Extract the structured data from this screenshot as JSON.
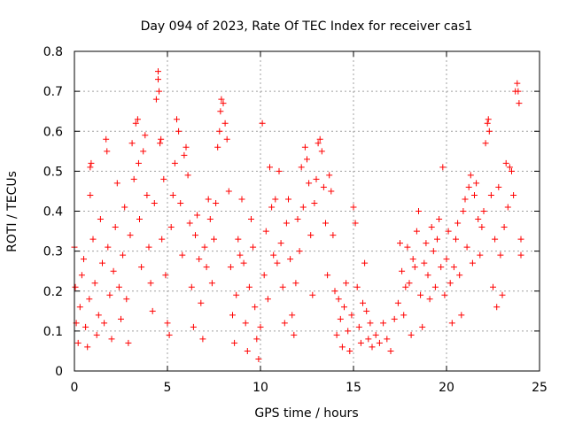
{
  "chart_data": {
    "type": "scatter",
    "title": "Day 094 of 2023, Rate Of TEC Index for receiver cas1",
    "xlabel": "GPS time / hours",
    "ylabel": "ROTI / TECUs",
    "xlim": [
      0,
      25
    ],
    "ylim": [
      0,
      0.8
    ],
    "xticks": [
      0,
      5,
      10,
      15,
      20,
      25
    ],
    "xtick_labels": [
      "0",
      "5",
      "10",
      "15",
      "20",
      "25"
    ],
    "yticks": [
      0,
      0.1,
      0.2,
      0.3,
      0.4,
      0.5,
      0.6,
      0.7,
      0.8
    ],
    "ytick_labels": [
      "0",
      "0.1",
      "0.2",
      "0.3",
      "0.4",
      "0.5",
      "0.6",
      "0.7",
      "0.8"
    ],
    "grid": true,
    "marker": "plus",
    "series": [
      {
        "color": "#ff0000",
        "points": [
          [
            0.0,
            0.31
          ],
          [
            0.05,
            0.21
          ],
          [
            0.1,
            0.12
          ],
          [
            0.2,
            0.07
          ],
          [
            0.3,
            0.16
          ],
          [
            0.4,
            0.24
          ],
          [
            0.5,
            0.28
          ],
          [
            0.6,
            0.11
          ],
          [
            0.7,
            0.06
          ],
          [
            0.8,
            0.18
          ],
          [
            0.85,
            0.44
          ],
          [
            0.85,
            0.51
          ],
          [
            0.9,
            0.52
          ],
          [
            1.0,
            0.33
          ],
          [
            1.1,
            0.22
          ],
          [
            1.2,
            0.09
          ],
          [
            1.3,
            0.14
          ],
          [
            1.4,
            0.38
          ],
          [
            1.5,
            0.27
          ],
          [
            1.6,
            0.12
          ],
          [
            1.7,
            0.58
          ],
          [
            1.75,
            0.55
          ],
          [
            1.8,
            0.31
          ],
          [
            1.9,
            0.19
          ],
          [
            2.0,
            0.08
          ],
          [
            2.1,
            0.25
          ],
          [
            2.2,
            0.36
          ],
          [
            2.3,
            0.47
          ],
          [
            2.4,
            0.21
          ],
          [
            2.5,
            0.13
          ],
          [
            2.6,
            0.29
          ],
          [
            2.7,
            0.41
          ],
          [
            2.8,
            0.18
          ],
          [
            2.9,
            0.07
          ],
          [
            3.0,
            0.34
          ],
          [
            3.1,
            0.57
          ],
          [
            3.2,
            0.48
          ],
          [
            3.3,
            0.62
          ],
          [
            3.4,
            0.63
          ],
          [
            3.45,
            0.52
          ],
          [
            3.5,
            0.38
          ],
          [
            3.6,
            0.26
          ],
          [
            3.7,
            0.55
          ],
          [
            3.8,
            0.59
          ],
          [
            3.9,
            0.44
          ],
          [
            4.0,
            0.31
          ],
          [
            4.1,
            0.22
          ],
          [
            4.2,
            0.15
          ],
          [
            4.3,
            0.42
          ],
          [
            4.4,
            0.68
          ],
          [
            4.5,
            0.75
          ],
          [
            4.5,
            0.73
          ],
          [
            4.55,
            0.7
          ],
          [
            4.6,
            0.57
          ],
          [
            4.65,
            0.58
          ],
          [
            4.7,
            0.33
          ],
          [
            4.8,
            0.48
          ],
          [
            4.9,
            0.24
          ],
          [
            5.0,
            0.12
          ],
          [
            5.1,
            0.09
          ],
          [
            5.2,
            0.36
          ],
          [
            5.3,
            0.44
          ],
          [
            5.4,
            0.52
          ],
          [
            5.5,
            0.63
          ],
          [
            5.6,
            0.6
          ],
          [
            5.7,
            0.42
          ],
          [
            5.8,
            0.29
          ],
          [
            5.9,
            0.54
          ],
          [
            6.0,
            0.56
          ],
          [
            6.1,
            0.49
          ],
          [
            6.2,
            0.37
          ],
          [
            6.3,
            0.21
          ],
          [
            6.4,
            0.11
          ],
          [
            6.5,
            0.34
          ],
          [
            6.6,
            0.39
          ],
          [
            6.7,
            0.28
          ],
          [
            6.8,
            0.17
          ],
          [
            6.9,
            0.08
          ],
          [
            7.0,
            0.31
          ],
          [
            7.1,
            0.26
          ],
          [
            7.2,
            0.43
          ],
          [
            7.3,
            0.38
          ],
          [
            7.4,
            0.22
          ],
          [
            7.5,
            0.33
          ],
          [
            7.6,
            0.42
          ],
          [
            7.7,
            0.56
          ],
          [
            7.8,
            0.6
          ],
          [
            7.85,
            0.65
          ],
          [
            7.9,
            0.68
          ],
          [
            8.0,
            0.67
          ],
          [
            8.1,
            0.62
          ],
          [
            8.2,
            0.58
          ],
          [
            8.3,
            0.45
          ],
          [
            8.4,
            0.26
          ],
          [
            8.5,
            0.14
          ],
          [
            8.6,
            0.07
          ],
          [
            8.7,
            0.19
          ],
          [
            8.8,
            0.33
          ],
          [
            8.9,
            0.29
          ],
          [
            9.0,
            0.43
          ],
          [
            9.1,
            0.27
          ],
          [
            9.2,
            0.12
          ],
          [
            9.3,
            0.05
          ],
          [
            9.4,
            0.21
          ],
          [
            9.5,
            0.38
          ],
          [
            9.6,
            0.31
          ],
          [
            9.7,
            0.16
          ],
          [
            9.8,
            0.08
          ],
          [
            9.9,
            0.03
          ],
          [
            10.0,
            0.11
          ],
          [
            10.1,
            0.62
          ],
          [
            10.2,
            0.24
          ],
          [
            10.3,
            0.35
          ],
          [
            10.4,
            0.18
          ],
          [
            10.5,
            0.51
          ],
          [
            10.6,
            0.41
          ],
          [
            10.7,
            0.29
          ],
          [
            10.8,
            0.43
          ],
          [
            10.9,
            0.27
          ],
          [
            11.0,
            0.5
          ],
          [
            11.1,
            0.32
          ],
          [
            11.2,
            0.21
          ],
          [
            11.3,
            0.12
          ],
          [
            11.4,
            0.37
          ],
          [
            11.5,
            0.43
          ],
          [
            11.6,
            0.28
          ],
          [
            11.7,
            0.14
          ],
          [
            11.8,
            0.09
          ],
          [
            11.9,
            0.22
          ],
          [
            12.0,
            0.38
          ],
          [
            12.1,
            0.3
          ],
          [
            12.2,
            0.51
          ],
          [
            12.3,
            0.41
          ],
          [
            12.4,
            0.56
          ],
          [
            12.5,
            0.53
          ],
          [
            12.6,
            0.47
          ],
          [
            12.7,
            0.34
          ],
          [
            12.8,
            0.19
          ],
          [
            12.9,
            0.42
          ],
          [
            13.0,
            0.48
          ],
          [
            13.1,
            0.57
          ],
          [
            13.2,
            0.58
          ],
          [
            13.3,
            0.55
          ],
          [
            13.4,
            0.46
          ],
          [
            13.5,
            0.37
          ],
          [
            13.6,
            0.24
          ],
          [
            13.7,
            0.49
          ],
          [
            13.8,
            0.45
          ],
          [
            13.9,
            0.34
          ],
          [
            14.0,
            0.2
          ],
          [
            14.1,
            0.09
          ],
          [
            14.2,
            0.18
          ],
          [
            14.3,
            0.13
          ],
          [
            14.4,
            0.06
          ],
          [
            14.5,
            0.16
          ],
          [
            14.6,
            0.22
          ],
          [
            14.7,
            0.1
          ],
          [
            14.8,
            0.05
          ],
          [
            14.9,
            0.14
          ],
          [
            15.0,
            0.41
          ],
          [
            15.1,
            0.37
          ],
          [
            15.2,
            0.21
          ],
          [
            15.3,
            0.11
          ],
          [
            15.4,
            0.07
          ],
          [
            15.5,
            0.17
          ],
          [
            15.6,
            0.27
          ],
          [
            15.7,
            0.15
          ],
          [
            15.8,
            0.08
          ],
          [
            15.9,
            0.12
          ],
          [
            16.0,
            0.06
          ],
          [
            16.2,
            0.09
          ],
          [
            16.4,
            0.07
          ],
          [
            16.6,
            0.12
          ],
          [
            16.8,
            0.08
          ],
          [
            17.0,
            0.05
          ],
          [
            17.2,
            0.13
          ],
          [
            17.4,
            0.17
          ],
          [
            17.5,
            0.32
          ],
          [
            17.6,
            0.25
          ],
          [
            17.7,
            0.14
          ],
          [
            17.8,
            0.21
          ],
          [
            17.9,
            0.31
          ],
          [
            18.0,
            0.22
          ],
          [
            18.1,
            0.09
          ],
          [
            18.2,
            0.28
          ],
          [
            18.3,
            0.26
          ],
          [
            18.4,
            0.35
          ],
          [
            18.5,
            0.4
          ],
          [
            18.6,
            0.19
          ],
          [
            18.7,
            0.11
          ],
          [
            18.8,
            0.27
          ],
          [
            18.9,
            0.32
          ],
          [
            19.0,
            0.24
          ],
          [
            19.1,
            0.18
          ],
          [
            19.2,
            0.36
          ],
          [
            19.3,
            0.3
          ],
          [
            19.4,
            0.21
          ],
          [
            19.5,
            0.33
          ],
          [
            19.6,
            0.38
          ],
          [
            19.7,
            0.26
          ],
          [
            19.8,
            0.51
          ],
          [
            19.9,
            0.19
          ],
          [
            20.0,
            0.28
          ],
          [
            20.1,
            0.35
          ],
          [
            20.2,
            0.22
          ],
          [
            20.3,
            0.12
          ],
          [
            20.4,
            0.26
          ],
          [
            20.5,
            0.33
          ],
          [
            20.6,
            0.37
          ],
          [
            20.7,
            0.24
          ],
          [
            20.8,
            0.14
          ],
          [
            20.9,
            0.4
          ],
          [
            21.0,
            0.43
          ],
          [
            21.1,
            0.31
          ],
          [
            21.2,
            0.46
          ],
          [
            21.3,
            0.49
          ],
          [
            21.4,
            0.27
          ],
          [
            21.5,
            0.44
          ],
          [
            21.6,
            0.47
          ],
          [
            21.7,
            0.38
          ],
          [
            21.8,
            0.29
          ],
          [
            21.9,
            0.36
          ],
          [
            22.0,
            0.4
          ],
          [
            22.1,
            0.57
          ],
          [
            22.2,
            0.62
          ],
          [
            22.25,
            0.63
          ],
          [
            22.3,
            0.6
          ],
          [
            22.4,
            0.44
          ],
          [
            22.5,
            0.21
          ],
          [
            22.6,
            0.33
          ],
          [
            22.7,
            0.16
          ],
          [
            22.8,
            0.46
          ],
          [
            22.9,
            0.29
          ],
          [
            23.0,
            0.19
          ],
          [
            23.1,
            0.36
          ],
          [
            23.2,
            0.52
          ],
          [
            23.3,
            0.41
          ],
          [
            23.4,
            0.51
          ],
          [
            23.5,
            0.5
          ],
          [
            23.6,
            0.44
          ],
          [
            23.7,
            0.7
          ],
          [
            23.8,
            0.72
          ],
          [
            23.85,
            0.7
          ],
          [
            23.9,
            0.67
          ],
          [
            24.0,
            0.33
          ],
          [
            24.0,
            0.29
          ]
        ]
      }
    ]
  }
}
